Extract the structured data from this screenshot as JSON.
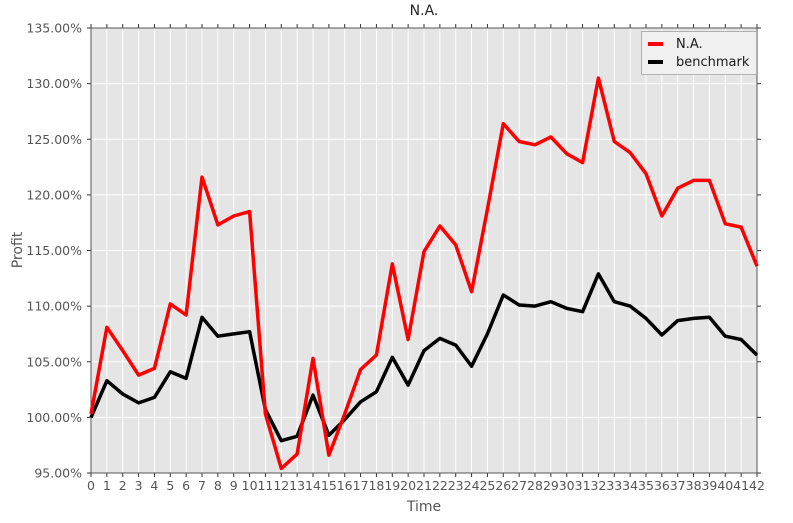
{
  "figure": {
    "title": "N.A.",
    "x_axis_label": "Time",
    "y_axis_label": "Profit",
    "legend": {
      "items": [
        {
          "label": "N.A.",
          "color": "#ff0000"
        },
        {
          "label": "benchmark",
          "color": "#000000"
        }
      ]
    }
  },
  "chart_data": {
    "type": "line",
    "title": "N.A.",
    "xlabel": "Time",
    "ylabel": "Profit",
    "xlim": [
      0,
      42
    ],
    "ylim": [
      95,
      135
    ],
    "grid": true,
    "legend_position": "upper right",
    "x": [
      0,
      1,
      2,
      3,
      4,
      5,
      6,
      7,
      8,
      9,
      10,
      11,
      12,
      13,
      14,
      15,
      16,
      17,
      18,
      19,
      20,
      21,
      22,
      23,
      24,
      25,
      26,
      27,
      28,
      29,
      30,
      31,
      32,
      33,
      34,
      35,
      36,
      37,
      38,
      39,
      40,
      41,
      42
    ],
    "x_tick_labels": [
      "0",
      "1",
      "2",
      "3",
      "4",
      "5",
      "6",
      "7",
      "8",
      "9",
      "10",
      "11",
      "12",
      "13",
      "14",
      "15",
      "16",
      "17",
      "18",
      "19",
      "20",
      "21",
      "22",
      "23",
      "24",
      "25",
      "26",
      "27",
      "28",
      "29",
      "30",
      "31",
      "32",
      "33",
      "34",
      "35",
      "36",
      "37",
      "38",
      "39",
      "40",
      "41",
      "42"
    ],
    "y_ticks": [
      95,
      100,
      105,
      110,
      115,
      120,
      125,
      130,
      135
    ],
    "y_tick_labels": [
      "95.00%",
      "100.00%",
      "105.00%",
      "110.00%",
      "115.00%",
      "120.00%",
      "125.00%",
      "130.00%",
      "135.00%"
    ],
    "series": [
      {
        "name": "N.A.",
        "color": "#ff0000",
        "values": [
          100.3,
          108.1,
          106.0,
          103.8,
          104.4,
          110.2,
          109.2,
          121.6,
          117.3,
          118.1,
          118.5,
          100.3,
          95.4,
          96.7,
          105.3,
          96.6,
          100.3,
          104.3,
          105.6,
          113.8,
          107.0,
          114.9,
          117.2,
          115.5,
          111.3,
          118.7,
          126.4,
          124.8,
          124.5,
          125.2,
          123.7,
          122.9,
          130.5,
          124.8,
          123.8,
          121.9,
          118.1,
          120.6,
          121.3,
          121.3,
          117.4,
          117.1,
          113.6
        ]
      },
      {
        "name": "benchmark",
        "color": "#000000",
        "values": [
          100.0,
          103.3,
          102.1,
          101.3,
          101.8,
          104.1,
          103.5,
          109.0,
          107.3,
          107.5,
          107.7,
          100.7,
          97.9,
          98.3,
          102.0,
          98.4,
          99.8,
          101.4,
          102.3,
          105.4,
          102.9,
          106.0,
          107.1,
          106.5,
          104.6,
          107.5,
          111.0,
          110.1,
          110.0,
          110.4,
          109.8,
          109.5,
          112.9,
          110.4,
          110.0,
          108.9,
          107.4,
          108.7,
          108.9,
          109.0,
          107.3,
          107.0,
          105.6
        ]
      }
    ],
    "colors": {
      "figure_bg": "#ffffff",
      "plot_bg": "#e5e5e5",
      "grid": "#ffffff",
      "spine": "#555555",
      "tick": "#333333",
      "tick_label": "#555555"
    }
  }
}
